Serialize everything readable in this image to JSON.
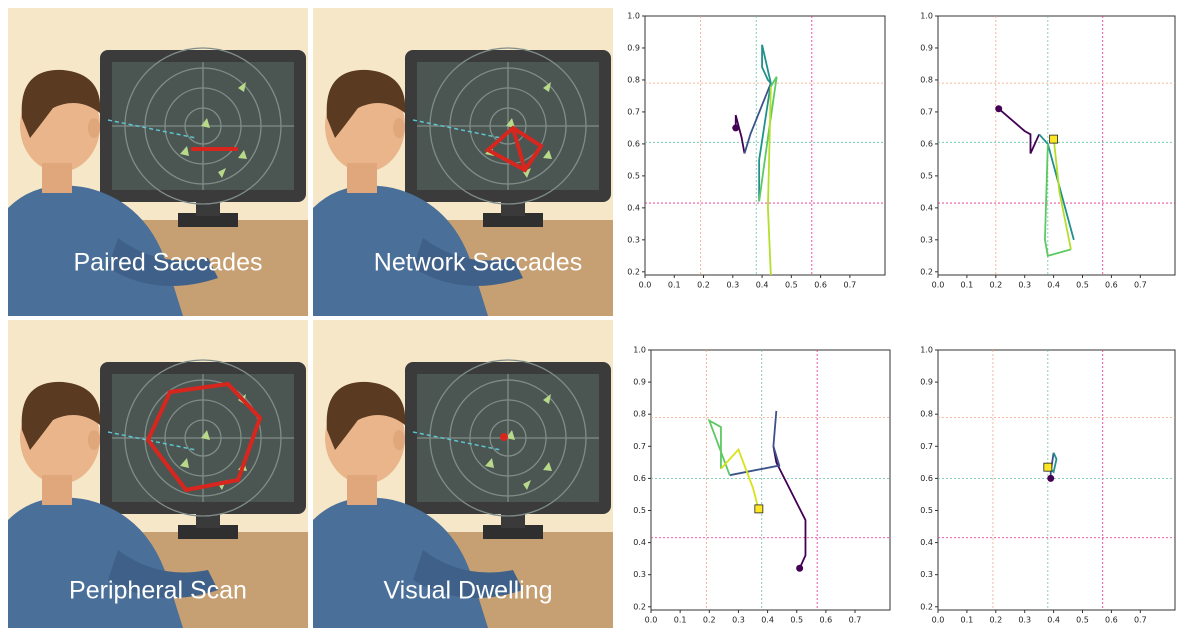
{
  "panels": [
    {
      "label": "Paired Saccades"
    },
    {
      "label": "Network Saccades"
    },
    {
      "label": "Peripheral Scan"
    },
    {
      "label": "Visual Dwelling"
    }
  ],
  "chart_data": [
    {
      "type": "line",
      "xlim": [
        0,
        0.82
      ],
      "ylim": [
        0.19,
        1.0
      ],
      "xticks": [
        {
          "value": 0,
          "label": "0.0"
        },
        0.1,
        0.2,
        0.3,
        0.4,
        0.5,
        0.6,
        0.7
      ],
      "yticks": [
        0.2,
        0.3,
        0.4,
        0.5,
        0.6,
        0.7,
        0.8,
        0.9,
        {
          "value": 1,
          "label": "1.0"
        }
      ],
      "vlines": [
        {
          "value": 0.19,
          "color": "#f4a582"
        },
        {
          "value": 0.38,
          "color": "#66c2a5"
        },
        {
          "value": 0.57,
          "color": "#e7298a"
        }
      ],
      "hlines": [
        {
          "value": 0.79,
          "color": "#f4a582"
        },
        {
          "value": 0.605,
          "color": "#66c2a5"
        },
        {
          "value": 0.415,
          "color": "#e7298a"
        }
      ],
      "series": [
        {
          "color": "#440154",
          "x": [
            0.31,
            0.31,
            0.33,
            0.34
          ],
          "values": [
            0.65,
            0.69,
            0.62,
            0.57
          ]
        },
        {
          "color": "#3b528b",
          "x": [
            0.34,
            0.36,
            0.43
          ],
          "values": [
            0.57,
            0.63,
            0.79
          ]
        },
        {
          "color": "#21918c",
          "x": [
            0.43,
            0.4,
            0.4,
            0.42,
            0.43,
            0.39,
            0.39
          ],
          "values": [
            0.79,
            0.91,
            0.84,
            0.8,
            0.79,
            0.55,
            0.42
          ]
        },
        {
          "color": "#5ec962",
          "x": [
            0.39,
            0.42,
            0.45,
            0.43
          ],
          "values": [
            0.42,
            0.62,
            0.81,
            0.78
          ]
        },
        {
          "color": "#b5de2b",
          "x": [
            0.43,
            0.42,
            0.43
          ],
          "values": [
            0.78,
            0.4,
            0.19
          ]
        }
      ],
      "start": {
        "x": 0.31,
        "y": 0.65,
        "color": "#440154"
      }
    },
    {
      "type": "line",
      "xlim": [
        0,
        0.82
      ],
      "ylim": [
        0.19,
        1.0
      ],
      "xticks": [
        {
          "value": 0,
          "label": "0.0"
        },
        0.1,
        0.2,
        0.3,
        0.4,
        0.5,
        0.6,
        0.7
      ],
      "yticks": [
        0.2,
        0.3,
        0.4,
        0.5,
        0.6,
        0.7,
        0.8,
        0.9,
        {
          "value": 1,
          "label": "1.0"
        }
      ],
      "vlines": [
        {
          "value": 0.2,
          "color": "#f4a582"
        },
        {
          "value": 0.38,
          "color": "#66c2a5"
        },
        {
          "value": 0.57,
          "color": "#e7298a"
        }
      ],
      "hlines": [
        {
          "value": 0.79,
          "color": "#f4a582"
        },
        {
          "value": 0.605,
          "color": "#66c2a5"
        },
        {
          "value": 0.415,
          "color": "#e7298a"
        }
      ],
      "series": [
        {
          "color": "#440154",
          "x": [
            0.21,
            0.3,
            0.32,
            0.32,
            0.35
          ],
          "values": [
            0.71,
            0.64,
            0.63,
            0.57,
            0.63
          ]
        },
        {
          "color": "#21918c",
          "x": [
            0.35,
            0.38,
            0.47,
            0.38
          ],
          "values": [
            0.63,
            0.6,
            0.3,
            0.6
          ]
        },
        {
          "color": "#5ec962",
          "x": [
            0.38,
            0.37,
            0.38,
            0.46
          ],
          "values": [
            0.6,
            0.3,
            0.25,
            0.27
          ]
        },
        {
          "color": "#b5de2b",
          "x": [
            0.46,
            0.42,
            0.4
          ],
          "values": [
            0.27,
            0.45,
            0.62
          ]
        }
      ],
      "start": {
        "x": 0.21,
        "y": 0.71,
        "color": "#440154"
      },
      "end": {
        "x": 0.4,
        "y": 0.615,
        "color": "#fde725"
      }
    },
    {
      "type": "line",
      "xlim": [
        0,
        0.82
      ],
      "ylim": [
        0.19,
        1.0
      ],
      "xticks": [
        {
          "value": 0,
          "label": "0.0"
        },
        0.1,
        0.2,
        0.3,
        0.4,
        0.5,
        0.6,
        0.7
      ],
      "yticks": [
        0.2,
        0.3,
        0.4,
        0.5,
        0.6,
        0.7,
        0.8,
        0.9,
        {
          "value": 1,
          "label": "1.0"
        }
      ],
      "vlines": [
        {
          "value": 0.19,
          "color": "#f4a582"
        },
        {
          "value": 0.38,
          "color": "#66c2a5"
        },
        {
          "value": 0.57,
          "color": "#e7298a"
        }
      ],
      "hlines": [
        {
          "value": 0.79,
          "color": "#f4a582"
        },
        {
          "value": 0.6,
          "color": "#66c2a5"
        },
        {
          "value": 0.415,
          "color": "#e7298a"
        }
      ],
      "series": [
        {
          "color": "#440154",
          "x": [
            0.51,
            0.53,
            0.53,
            0.43,
            0.42
          ],
          "values": [
            0.32,
            0.36,
            0.47,
            0.65,
            0.7
          ]
        },
        {
          "color": "#3b528b",
          "x": [
            0.42,
            0.43,
            0.42,
            0.44,
            0.27
          ],
          "values": [
            0.7,
            0.81,
            0.7,
            0.64,
            0.61
          ]
        },
        {
          "color": "#5ec962",
          "x": [
            0.27,
            0.2,
            0.24,
            0.24
          ],
          "values": [
            0.61,
            0.78,
            0.76,
            0.63
          ]
        },
        {
          "color": "#d8e219",
          "x": [
            0.24,
            0.3,
            0.35,
            0.37
          ],
          "values": [
            0.63,
            0.69,
            0.57,
            0.5
          ]
        }
      ],
      "start": {
        "x": 0.51,
        "y": 0.32,
        "color": "#440154"
      },
      "end": {
        "x": 0.37,
        "y": 0.505,
        "color": "#fde725"
      }
    },
    {
      "type": "line",
      "xlim": [
        0,
        0.82
      ],
      "ylim": [
        0.19,
        1.0
      ],
      "xticks": [
        {
          "value": 0,
          "label": "0.0"
        },
        0.1,
        0.2,
        0.3,
        0.4,
        0.5,
        0.6,
        0.7
      ],
      "yticks": [
        0.2,
        0.3,
        0.4,
        0.5,
        0.6,
        0.7,
        0.8,
        0.9,
        {
          "value": 1,
          "label": "1.0"
        }
      ],
      "vlines": [
        {
          "value": 0.19,
          "color": "#f4a582"
        },
        {
          "value": 0.38,
          "color": "#66c2a5"
        },
        {
          "value": 0.57,
          "color": "#e7298a"
        }
      ],
      "hlines": [
        {
          "value": 0.79,
          "color": "#f4a582"
        },
        {
          "value": 0.6,
          "color": "#66c2a5"
        },
        {
          "value": 0.415,
          "color": "#e7298a"
        }
      ],
      "series": [
        {
          "color": "#3b528b",
          "x": [
            0.39,
            0.39,
            0.4
          ],
          "values": [
            0.6,
            0.62,
            0.68
          ]
        },
        {
          "color": "#21918c",
          "x": [
            0.4,
            0.41,
            0.4,
            0.38
          ],
          "values": [
            0.68,
            0.66,
            0.62,
            0.635
          ]
        }
      ],
      "start": {
        "x": 0.39,
        "y": 0.6,
        "color": "#440154"
      },
      "end": {
        "x": 0.38,
        "y": 0.635,
        "color": "#fde725"
      }
    }
  ]
}
